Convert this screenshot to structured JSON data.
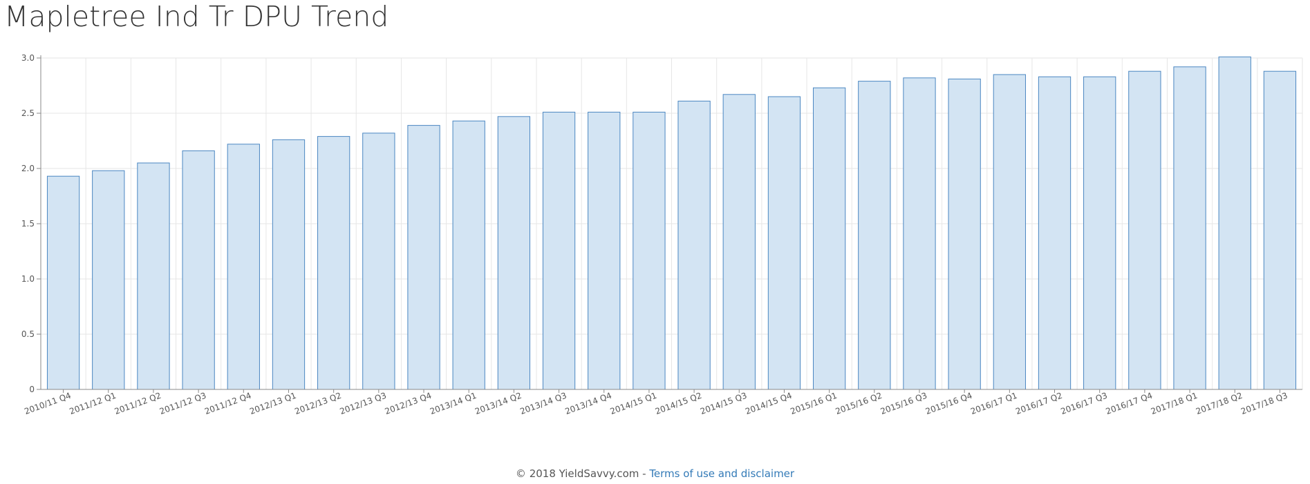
{
  "page": {
    "title": "Mapletree Ind Tr DPU Trend",
    "footer_copyright": "© 2018 YieldSavvy.com",
    "footer_separator": " - ",
    "footer_link": "Terms of use and disclaimer"
  },
  "colors": {
    "bar_fill": "#d3e4f3",
    "bar_stroke": "#4a86c1",
    "grid": "#e6e6e6",
    "axis": "#888888",
    "tick_text": "#555555"
  },
  "chart_data": {
    "type": "bar",
    "title": "Mapletree Ind Tr DPU Trend",
    "xlabel": "",
    "ylabel": "",
    "ylim": [
      0,
      3.0
    ],
    "yticks": [
      0,
      0.5,
      1.0,
      1.5,
      2.0,
      2.5,
      3.0
    ],
    "ytick_labels": [
      "0",
      "0.5",
      "1.0",
      "1.5",
      "2.0",
      "2.5",
      "3.0"
    ],
    "grid": true,
    "legend": "none",
    "categories": [
      "2010/11 Q4",
      "2011/12 Q1",
      "2011/12 Q2",
      "2011/12 Q3",
      "2011/12 Q4",
      "2012/13 Q1",
      "2012/13 Q2",
      "2012/13 Q3",
      "2012/13 Q4",
      "2013/14 Q1",
      "2013/14 Q2",
      "2013/14 Q3",
      "2013/14 Q4",
      "2014/15 Q1",
      "2014/15 Q2",
      "2014/15 Q3",
      "2014/15 Q4",
      "2015/16 Q1",
      "2015/16 Q2",
      "2015/16 Q3",
      "2015/16 Q4",
      "2016/17 Q1",
      "2016/17 Q2",
      "2016/17 Q3",
      "2016/17 Q4",
      "2017/18 Q1",
      "2017/18 Q2",
      "2017/18 Q3"
    ],
    "values": [
      1.93,
      1.98,
      2.05,
      2.16,
      2.22,
      2.26,
      2.29,
      2.32,
      2.39,
      2.43,
      2.47,
      2.51,
      2.51,
      2.51,
      2.61,
      2.67,
      2.65,
      2.73,
      2.79,
      2.82,
      2.81,
      2.85,
      2.83,
      2.83,
      2.88,
      2.92,
      3.01,
      2.88
    ]
  }
}
